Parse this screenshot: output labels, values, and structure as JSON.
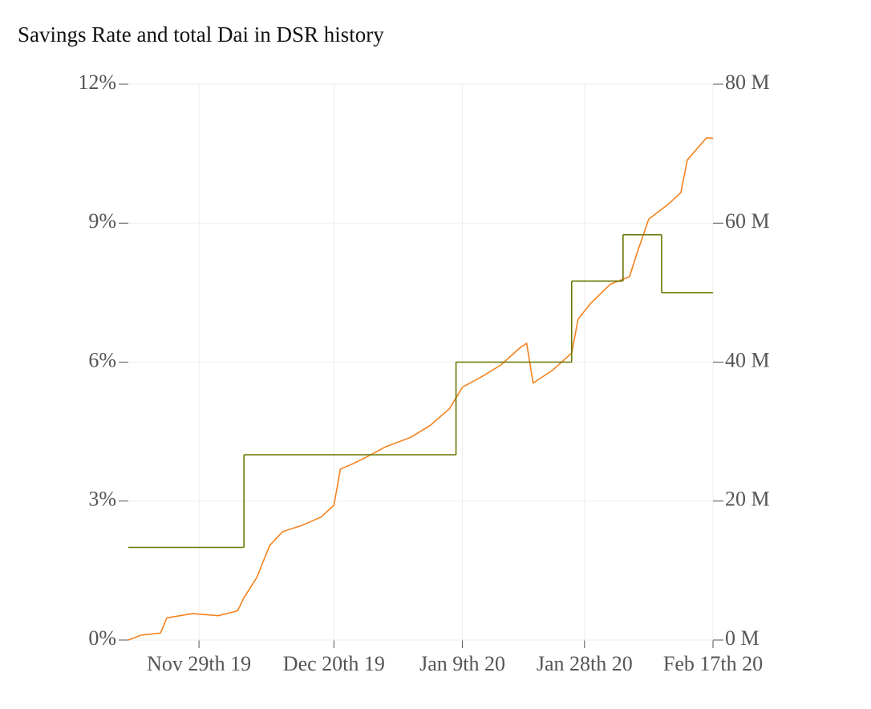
{
  "chart_data": {
    "type": "line",
    "title": "Savings Rate and total Dai in DSR history",
    "xlim": [
      "2019-11-18",
      "2020-02-17"
    ],
    "xticks": [
      {
        "value": "2019-11-29",
        "label": "Nov 29th 19"
      },
      {
        "value": "2019-12-20",
        "label": "Dec 20th 19"
      },
      {
        "value": "2020-01-09",
        "label": "Jan 9th 20"
      },
      {
        "value": "2020-01-28",
        "label": "Jan 28th 20"
      },
      {
        "value": "2020-02-17",
        "label": "Feb 17th 20"
      }
    ],
    "ylim": [
      0,
      12
    ],
    "yticks": [
      {
        "value": 0,
        "label": "0%"
      },
      {
        "value": 3,
        "label": "3%"
      },
      {
        "value": 6,
        "label": "6%"
      },
      {
        "value": 9,
        "label": "9%"
      },
      {
        "value": 12,
        "label": "12%"
      }
    ],
    "y2lim": [
      0,
      80
    ],
    "y2ticks": [
      {
        "value": 0,
        "label": "0 M"
      },
      {
        "value": 20,
        "label": "20 M"
      },
      {
        "value": 40,
        "label": "40 M"
      },
      {
        "value": 60,
        "label": "60 M"
      },
      {
        "value": 80,
        "label": "80 M"
      }
    ],
    "grid": true,
    "series": [
      {
        "color": "#f5821f",
        "axis": "y2",
        "x": [
          "2019-11-18",
          "2019-11-20",
          "2019-11-23",
          "2019-11-24",
          "2019-11-28",
          "2019-12-02",
          "2019-12-05",
          "2019-12-06",
          "2019-12-08",
          "2019-12-10",
          "2019-12-12",
          "2019-12-15",
          "2019-12-18",
          "2019-12-20",
          "2019-12-21",
          "2019-12-23",
          "2019-12-25",
          "2019-12-28",
          "2020-01-01",
          "2020-01-04",
          "2020-01-07",
          "2020-01-09",
          "2020-01-12",
          "2020-01-15",
          "2020-01-18",
          "2020-01-19",
          "2020-01-20",
          "2020-01-23",
          "2020-01-26",
          "2020-01-27",
          "2020-01-29",
          "2020-02-01",
          "2020-02-04",
          "2020-02-05",
          "2020-02-07",
          "2020-02-10",
          "2020-02-12",
          "2020-02-13",
          "2020-02-16",
          "2020-02-17"
        ],
        "values": [
          0,
          0.7,
          1.0,
          3.2,
          3.8,
          3.5,
          4.2,
          6.1,
          9.0,
          13.6,
          15.6,
          16.5,
          17.7,
          19.4,
          24.6,
          25.4,
          26.3,
          27.8,
          29.2,
          30.9,
          33.3,
          36.4,
          37.9,
          39.6,
          42.1,
          42.7,
          37.0,
          38.8,
          41.3,
          46.2,
          48.5,
          51.2,
          52.3,
          55.2,
          60.6,
          62.7,
          64.4,
          69.1,
          72.3,
          72.2
        ]
      },
      {
        "color": "#6a7400",
        "axis": "y",
        "shape": "hv",
        "x": [
          "2019-11-18",
          "2019-12-06",
          "2020-01-08",
          "2020-01-26",
          "2020-02-03",
          "2020-02-09"
        ],
        "values": [
          2,
          4,
          6,
          7.75,
          8.75,
          7.5
        ]
      }
    ]
  }
}
